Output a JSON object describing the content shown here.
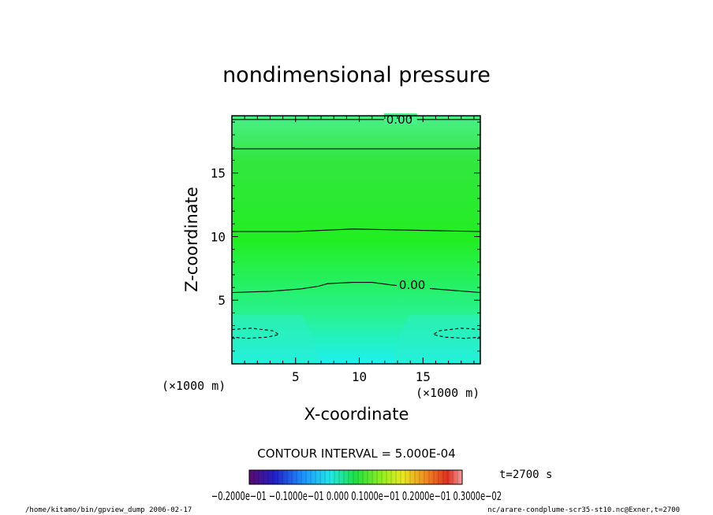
{
  "chart_data": {
    "type": "heatmap",
    "title": "nondimensional pressure",
    "xlabel": "X-coordinate",
    "ylabel": "Z-coordinate",
    "x_units": "(×1000 m)",
    "y_units": "(×1000 m)",
    "xlim": [
      0,
      19.5
    ],
    "ylim": [
      0,
      19.5
    ],
    "x_ticks": [
      5,
      10,
      15
    ],
    "y_ticks": [
      5,
      10,
      15
    ],
    "x_tick_labels": [
      "5",
      "10",
      "15"
    ],
    "y_tick_labels": [
      "5",
      "10",
      "15"
    ],
    "contour_interval_text": "CONTOUR INTERVAL = 5.000E-04",
    "time_label": "t=2700 s",
    "contour_lines": [
      {
        "style": "solid",
        "label": "0.00",
        "points": [
          [
            0,
            19.2
          ],
          [
            19.5,
            19.2
          ]
        ]
      },
      {
        "style": "solid",
        "label": "",
        "points": [
          [
            0,
            16.9
          ],
          [
            19.5,
            16.9
          ]
        ]
      },
      {
        "style": "solid",
        "label": "",
        "points": [
          [
            0,
            10.4
          ],
          [
            5,
            10.4
          ],
          [
            9.5,
            10.6
          ],
          [
            14.5,
            10.5
          ],
          [
            19.5,
            10.4
          ]
        ]
      },
      {
        "style": "solid",
        "label": "0.00",
        "points": [
          [
            0,
            5.6
          ],
          [
            3,
            5.7
          ],
          [
            5.5,
            5.9
          ],
          [
            6.8,
            6.1
          ],
          [
            7.5,
            6.3
          ],
          [
            9.5,
            6.4
          ],
          [
            11,
            6.4
          ],
          [
            12.5,
            6.2
          ],
          [
            14.5,
            6.0
          ],
          [
            17,
            5.8
          ],
          [
            19.5,
            5.6
          ]
        ]
      },
      {
        "style": "dashed",
        "label": "",
        "points": [
          [
            0,
            2.7
          ],
          [
            1.5,
            2.8
          ],
          [
            3.2,
            2.6
          ],
          [
            3.7,
            2.3
          ],
          [
            2.8,
            2.1
          ],
          [
            1.2,
            2.0
          ],
          [
            0,
            2.1
          ]
        ]
      },
      {
        "style": "dashed",
        "label": "",
        "points": [
          [
            19.5,
            2.7
          ],
          [
            18,
            2.8
          ],
          [
            16.3,
            2.6
          ],
          [
            15.8,
            2.3
          ],
          [
            16.7,
            2.1
          ],
          [
            18.3,
            2.0
          ],
          [
            19.5,
            2.1
          ]
        ]
      }
    ],
    "colorbar": {
      "labels_text": "−0.2000e−01  −0.1000e−01  0.000  0.1000e−01  0.2000e−01  0.3000e−02",
      "colormap": "rainbow",
      "low_color": "#5a0a6e",
      "high_color": "#f4a0a0"
    },
    "field_colors": {
      "top": "#4af08a",
      "upper": "#33e640",
      "middle": "#22ee22",
      "low": "#28f290",
      "bottom": "#1ef0f0"
    }
  },
  "footer": {
    "left": "/home/kitamo/bin/gpview_dump  2006-02-17",
    "right": "nc/arare-condplume-scr35-st10.nc@Exner,t=2700"
  }
}
